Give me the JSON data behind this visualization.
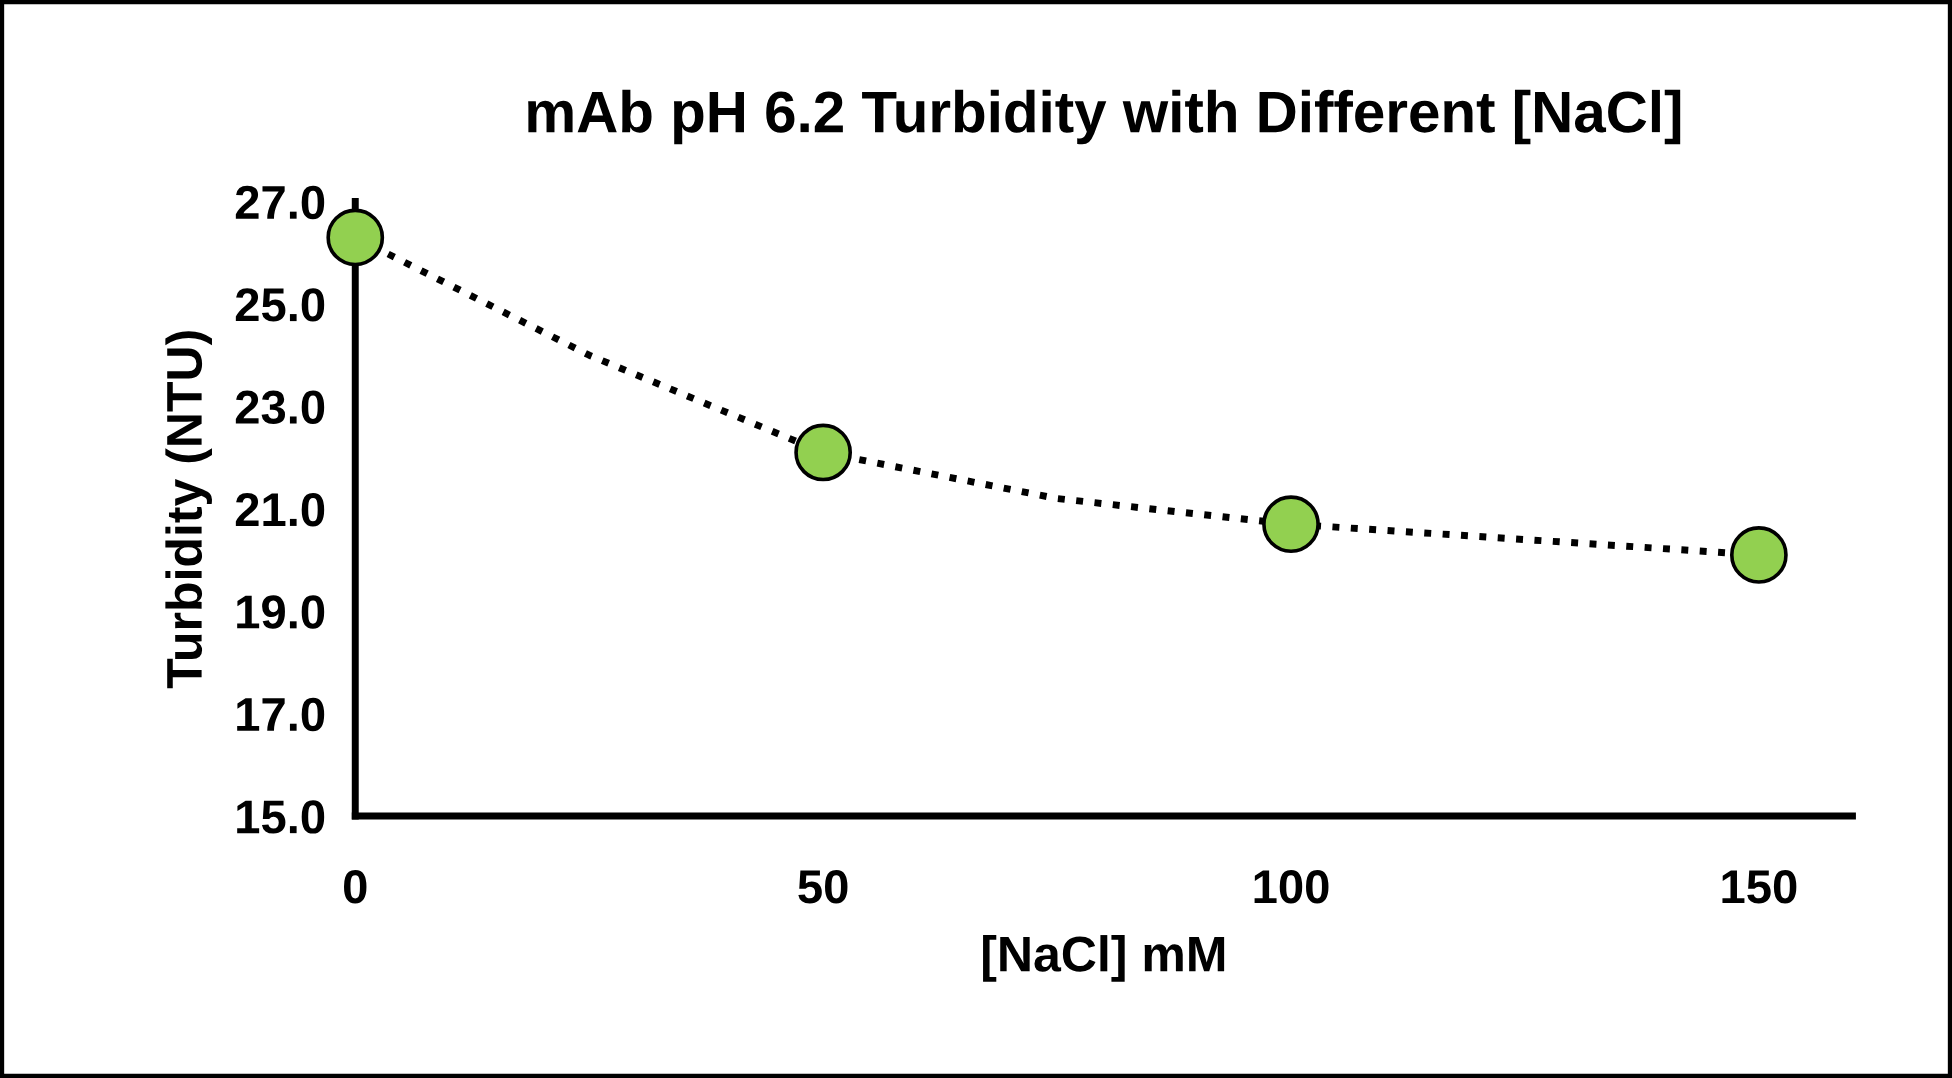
{
  "chart_data": {
    "type": "scatter",
    "title": "mAb pH 6.2 Turbidity with Different [NaCl]",
    "xlabel": "[NaCl] mM",
    "ylabel": "Turbidity (NTU)",
    "x": [
      0,
      50,
      100,
      150
    ],
    "series": [
      {
        "color": "#92d050",
        "marker": "circle",
        "values": [
          26.3,
          22.1,
          20.7,
          20.1
        ]
      },
      {
        "type": "line",
        "color": "#000000",
        "line_style": "dotted",
        "marker": "none",
        "x": [
          0,
          25,
          50,
          75,
          100,
          125,
          150
        ],
        "values": [
          26.3,
          24.0,
          22.1,
          21.2,
          20.7,
          20.4,
          20.1
        ]
      }
    ],
    "xlim": [
      0,
      160
    ],
    "xticks": [
      0,
      50,
      100,
      150
    ],
    "ylim": [
      15,
      27
    ],
    "yticks": [
      {
        "value": 15,
        "label": "15.0"
      },
      {
        "value": 17,
        "label": "17.0"
      },
      {
        "value": 19,
        "label": "19.0"
      },
      {
        "value": 21,
        "label": "21.0"
      },
      {
        "value": 23,
        "label": "23.0"
      },
      {
        "value": 25,
        "label": "25.0"
      },
      {
        "value": 27,
        "label": "27.0"
      }
    ],
    "grid": false,
    "legend": false
  }
}
